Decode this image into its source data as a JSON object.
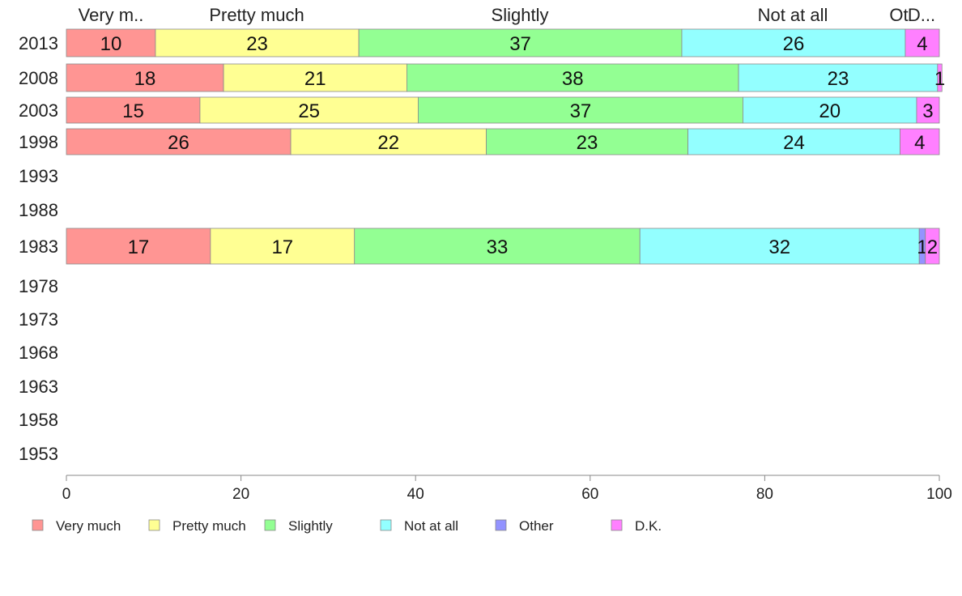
{
  "chart_data": {
    "type": "bar",
    "orientation": "horizontal",
    "stacked": true,
    "categories": [
      "2013",
      "2008",
      "2003",
      "1998",
      "1993",
      "1988",
      "1983",
      "1978",
      "1973",
      "1968",
      "1963",
      "1958",
      "1953"
    ],
    "column_headers": [
      "Very m..",
      "Pretty much",
      "Slightly",
      "Not at all",
      "Ot",
      "D..."
    ],
    "series": [
      {
        "name": "Very much",
        "color": "#ff9593",
        "values": [
          10.2,
          18,
          15.3,
          25.7,
          null,
          null,
          16.5,
          null,
          null,
          null,
          null,
          null,
          null
        ],
        "labels": [
          "10",
          "18",
          "15",
          "26",
          "",
          "",
          "17",
          "",
          "",
          "",
          "",
          "",
          ""
        ]
      },
      {
        "name": "Pretty much",
        "color": "#ffff93",
        "values": [
          23.3,
          21,
          25.0,
          22.4,
          null,
          null,
          16.5,
          null,
          null,
          null,
          null,
          null,
          null
        ],
        "labels": [
          "23",
          "21",
          "25",
          "22",
          "",
          "",
          "17",
          "",
          "",
          "",
          "",
          "",
          ""
        ]
      },
      {
        "name": "Slightly",
        "color": "#93ff93",
        "values": [
          37.0,
          38,
          37.2,
          23.1,
          null,
          null,
          32.7,
          null,
          null,
          null,
          null,
          null,
          null
        ],
        "labels": [
          "37",
          "38",
          "37",
          "23",
          "",
          "",
          "33",
          "",
          "",
          "",
          "",
          "",
          ""
        ]
      },
      {
        "name": "Not at all",
        "color": "#93ffff",
        "values": [
          25.6,
          22.8,
          19.9,
          24.3,
          null,
          null,
          32.0,
          null,
          null,
          null,
          null,
          null,
          null
        ],
        "labels": [
          "26",
          "23",
          "20",
          "24",
          "",
          "",
          "32",
          "",
          "",
          "",
          "",
          "",
          ""
        ]
      },
      {
        "name": "Other",
        "color": "#9393ff",
        "values": [
          0,
          0,
          0,
          0,
          null,
          null,
          0.7,
          null,
          null,
          null,
          null,
          null,
          null
        ],
        "labels": [
          "",
          "",
          "",
          "",
          "",
          "",
          "1",
          "",
          "",
          "",
          "",
          "",
          ""
        ]
      },
      {
        "name": "D.K.",
        "color": "#ff80ff",
        "values": [
          3.9,
          0.5,
          2.6,
          4.5,
          null,
          null,
          1.6,
          null,
          null,
          null,
          null,
          null,
          null
        ],
        "labels": [
          "4",
          "1",
          "3",
          "4",
          "",
          "",
          "2",
          "",
          "",
          "",
          "",
          "",
          ""
        ]
      }
    ],
    "xlim": [
      0,
      100
    ],
    "xticks": [
      "0",
      "20",
      "40",
      "60",
      "80",
      "100"
    ],
    "legend": [
      "Very much",
      "Pretty much",
      "Slightly",
      "Not at all",
      "Other",
      "D.K."
    ],
    "legend_placement": "bottom-left",
    "grid": false
  }
}
